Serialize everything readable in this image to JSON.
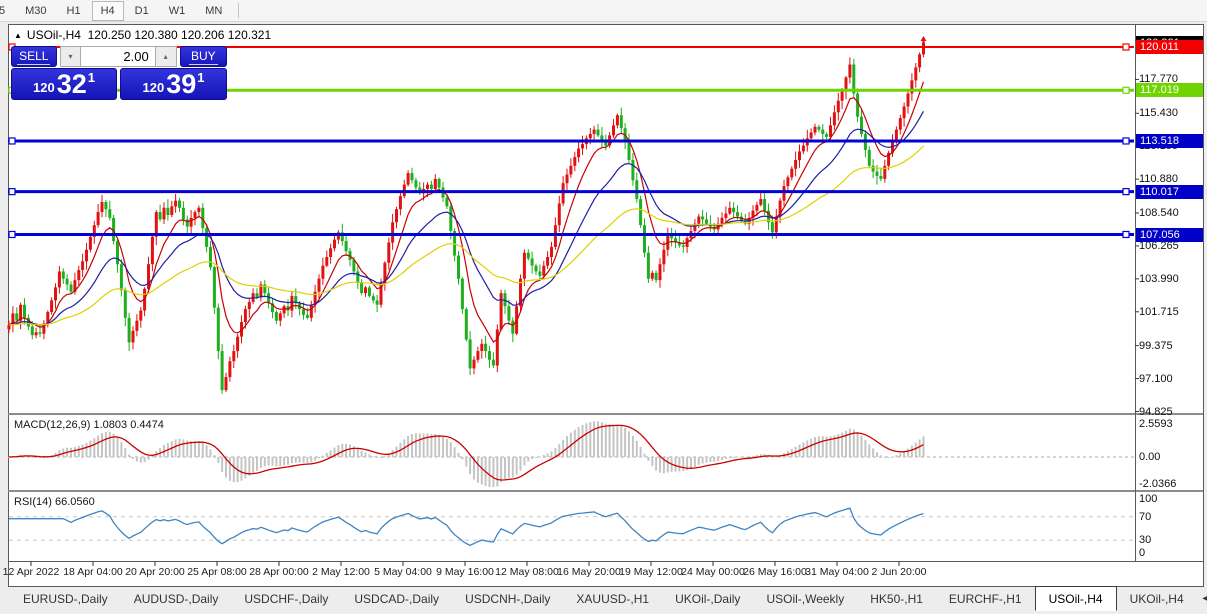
{
  "toolbar": {
    "timeframes": [
      "5",
      "M30",
      "H1",
      "H4",
      "D1",
      "W1",
      "MN"
    ],
    "active_timeframe": "H4"
  },
  "chart_window": {
    "title": {
      "expand_glyph": "▲",
      "symbol_period": "USOil-,H4",
      "ohlc": "120.250 120.380 120.206 120.321"
    }
  },
  "trade_panel": {
    "sell_label": "SELL",
    "buy_label": "BUY",
    "volume": "2.00",
    "spin_down_glyph": "▾",
    "spin_up_glyph": "▴",
    "sell_price": {
      "prefix": "120",
      "big": "32",
      "sup": "1"
    },
    "buy_price": {
      "prefix": "120",
      "big": "39",
      "sup": "1"
    }
  },
  "price_axis": {
    "plain_ticks": [
      "117.770",
      "115.430",
      "113.155",
      "110.880",
      "108.540",
      "106.265",
      "103.990",
      "101.715",
      "99.375",
      "97.100",
      "94.825"
    ],
    "bid_badge": {
      "label": "120.321",
      "value": 120.321,
      "color": "#000000"
    },
    "line_badges": [
      {
        "label": "120.011",
        "value": 120.011,
        "color": "#f40000"
      },
      {
        "label": "117.019",
        "value": 117.019,
        "color": "#6fd400"
      },
      {
        "label": "113.518",
        "value": 113.518,
        "color": "#0000c8"
      },
      {
        "label": "110.017",
        "value": 110.017,
        "color": "#0000c8"
      },
      {
        "label": "107.056",
        "value": 107.056,
        "color": "#0000c8"
      }
    ]
  },
  "chart_data": {
    "type": "candlestick",
    "symbol": "USOil-,H4",
    "color_convention": "red = bullish, green = bearish",
    "x_ticks": [
      "12 Apr 2022",
      "18 Apr 04:00",
      "20 Apr 20:00",
      "25 Apr 08:00",
      "28 Apr 00:00",
      "2 May 12:00",
      "5 May 04:00",
      "9 May 16:00",
      "12 May 08:00",
      "16 May 20:00",
      "19 May 12:00",
      "24 May 00:00",
      "26 May 16:00",
      "31 May 04:00",
      "2 Jun 20:00"
    ],
    "horizontal_lines": [
      {
        "price": 120.011,
        "color": "#f40000",
        "width": 2
      },
      {
        "price": 117.019,
        "color": "#6fd400",
        "width": 3
      },
      {
        "price": 113.518,
        "color": "#0202d6",
        "width": 3
      },
      {
        "price": 110.017,
        "color": "#0202d6",
        "width": 3
      },
      {
        "price": 107.056,
        "color": "#0202d6",
        "width": 3
      }
    ],
    "first_open": 100.5,
    "closes": [
      100.8,
      101.6,
      101.1,
      102.2,
      101.3,
      100.7,
      100.1,
      100.3,
      100.2,
      100.9,
      101.7,
      102.5,
      103.4,
      104.5,
      104.0,
      103.6,
      103.1,
      103.9,
      104.6,
      105.2,
      106.0,
      106.9,
      107.7,
      108.6,
      109.3,
      108.8,
      108.2,
      106.6,
      105.0,
      103.2,
      101.3,
      99.6,
      100.4,
      101.1,
      101.8,
      103.3,
      105.0,
      106.9,
      108.6,
      108.1,
      108.9,
      108.4,
      109.0,
      109.4,
      108.9,
      108.1,
      107.6,
      108.2,
      108.6,
      108.9,
      107.5,
      106.2,
      104.8,
      102.0,
      99.0,
      96.3,
      97.2,
      98.3,
      99.0,
      100.0,
      101.0,
      101.9,
      102.4,
      103.0,
      102.7,
      103.6,
      103.0,
      102.3,
      101.7,
      101.1,
      101.6,
      102.1,
      101.8,
      102.8,
      102.3,
      101.9,
      101.5,
      101.3,
      102.2,
      103.1,
      104.0,
      104.9,
      105.5,
      106.1,
      106.7,
      107.2,
      106.6,
      105.9,
      105.3,
      104.5,
      103.7,
      103.0,
      103.4,
      102.8,
      102.5,
      102.2,
      103.7,
      105.1,
      106.5,
      107.9,
      108.8,
      109.7,
      110.5,
      111.3,
      110.8,
      110.3,
      109.9,
      110.2,
      110.5,
      110.2,
      110.9,
      110.3,
      109.6,
      109.0,
      107.3,
      105.6,
      104.0,
      101.9,
      99.8,
      97.8,
      98.4,
      99.0,
      99.5,
      99.0,
      98.4,
      98.0,
      100.5,
      103.0,
      102.1,
      101.1,
      100.2,
      102.1,
      104.0,
      105.8,
      105.4,
      104.9,
      104.5,
      104.2,
      104.9,
      105.5,
      106.2,
      107.7,
      109.2,
      110.6,
      111.2,
      111.8,
      112.4,
      113.0,
      113.3,
      113.7,
      114.0,
      114.3,
      113.9,
      113.5,
      113.2,
      113.9,
      114.6,
      115.3,
      114.4,
      113.5,
      112.2,
      110.8,
      109.5,
      107.7,
      105.8,
      104.0,
      104.4,
      103.9,
      105.0,
      106.0,
      107.0,
      106.8,
      106.5,
      106.3,
      106.2,
      106.8,
      107.3,
      107.8,
      108.3,
      108.1,
      107.8,
      107.6,
      107.4,
      107.8,
      108.2,
      108.5,
      108.9,
      108.6,
      108.3,
      108.0,
      107.8,
      108.2,
      108.7,
      109.1,
      109.5,
      108.7,
      107.9,
      107.2,
      108.3,
      109.4,
      110.4,
      111.0,
      111.6,
      112.2,
      112.8,
      113.2,
      113.7,
      114.1,
      114.5,
      114.3,
      114.0,
      113.8,
      114.6,
      115.5,
      116.3,
      117.0,
      117.9,
      118.8,
      116.8,
      115.2,
      114.0,
      112.9,
      111.8,
      111.4,
      111.1,
      110.9,
      111.8,
      112.7,
      113.5,
      114.3,
      115.1,
      115.9,
      116.8,
      117.7,
      118.6,
      119.5,
      120.32
    ],
    "moving_averages": [
      {
        "period": 8,
        "color": "#c80000"
      },
      {
        "period": 21,
        "color": "#1e1ea8"
      },
      {
        "period": 55,
        "color": "#e0d000"
      }
    ],
    "macd": {
      "label": "MACD(12,26,9)",
      "main_value": "1.0803",
      "signal_value": "0.4474",
      "params": [
        12,
        26,
        9
      ],
      "y_ticks": [
        "2.5593",
        "0.00",
        "-2.0366"
      ],
      "hist_color": "#c4c4c4",
      "signal_color": "#cc0000"
    },
    "rsi": {
      "label": "RSI(14)",
      "value": "66.0560",
      "period": 14,
      "levels": [
        70,
        30
      ],
      "y_ticks": [
        "100",
        "70",
        "30",
        "0"
      ],
      "line_color": "#3d85c4"
    },
    "candle_colors": {
      "up": "#e01212",
      "down": "#1fae1f"
    }
  },
  "tabs": {
    "items": [
      "EURUSD-,Daily",
      "AUDUSD-,Daily",
      "USDCHF-,Daily",
      "USDCAD-,Daily",
      "USDCNH-,Daily",
      "XAUUSD-,H1",
      "UKOil-,Daily",
      "USOil-,Weekly",
      "HK50-,H1",
      "EURCHF-,H1",
      "USOil-,H4",
      "UKOil-,H4"
    ],
    "active_index": 10,
    "left_arrow": "◄",
    "right_arrow": "►"
  }
}
